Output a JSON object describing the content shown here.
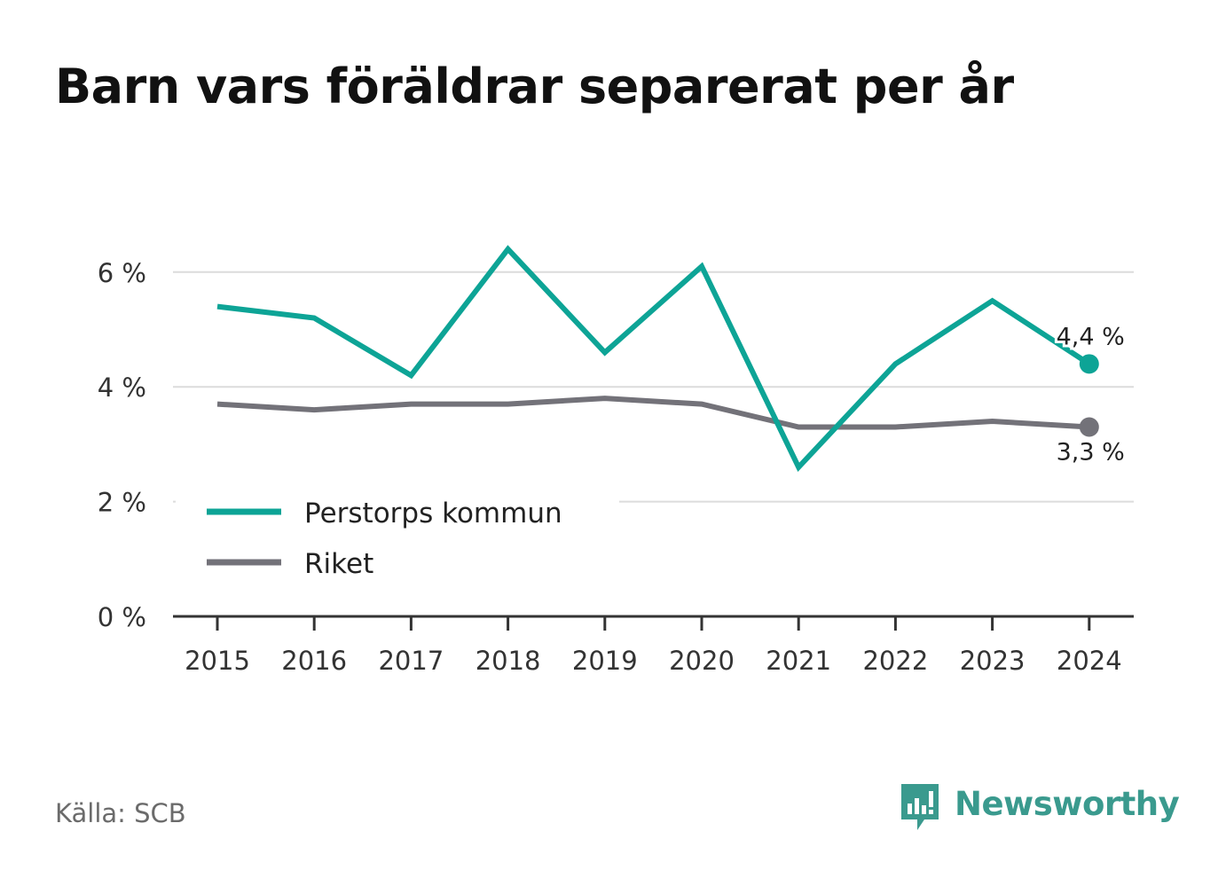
{
  "title": "Barn vars föräldrar separerat per år",
  "source": "Källa: SCB",
  "brand": {
    "name": "Newsworthy",
    "icon": "newsworthy-logo-icon",
    "color": "#3a9a8e"
  },
  "chart_data": {
    "type": "line",
    "title": "Barn vars föräldrar separerat per år",
    "x": [
      "2015",
      "2016",
      "2017",
      "2018",
      "2019",
      "2020",
      "2021",
      "2022",
      "2023",
      "2024"
    ],
    "ylim": [
      0,
      7
    ],
    "yticks": [
      0,
      2,
      4,
      6
    ],
    "ytick_labels": [
      "0 %",
      "2 %",
      "4 %",
      "6 %"
    ],
    "grid": true,
    "legend_position": "bottom-left",
    "series": [
      {
        "name": "Perstorps kommun",
        "color": "#0da496",
        "values": [
          5.4,
          5.2,
          4.2,
          6.4,
          4.6,
          6.1,
          2.6,
          4.4,
          5.5,
          4.4
        ],
        "end_label": "4,4 %"
      },
      {
        "name": "Riket",
        "color": "#737279",
        "values": [
          3.7,
          3.6,
          3.7,
          3.7,
          3.8,
          3.7,
          3.3,
          3.3,
          3.4,
          3.3
        ],
        "end_label": "3,3 %"
      }
    ]
  }
}
